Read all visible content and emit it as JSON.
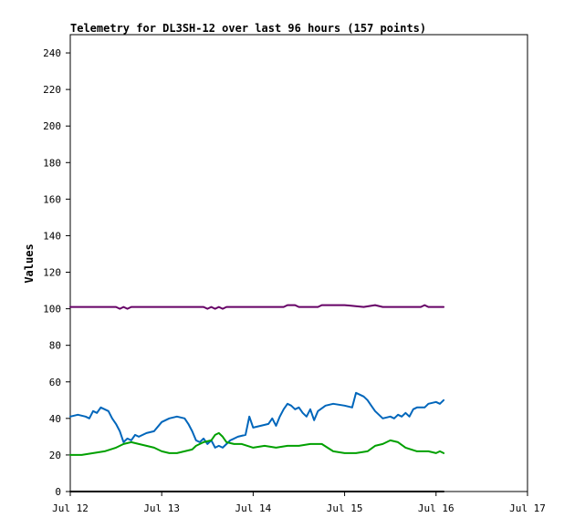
{
  "chart_data": {
    "type": "line",
    "title": "Telemetry for DL3SH-12 over last 96 hours (157 points)",
    "xlabel": "",
    "ylabel": "Values",
    "xlim": [
      "Jul 12",
      "Jul 17"
    ],
    "ylim": [
      0,
      250
    ],
    "x_ticks": [
      "Jul 12",
      "Jul 13",
      "Jul 14",
      "Jul 15",
      "Jul 16",
      "Jul 17"
    ],
    "y_ticks": [
      0,
      20,
      40,
      60,
      80,
      100,
      120,
      140,
      160,
      180,
      200,
      220,
      240
    ],
    "grid": false,
    "legend": "none",
    "series": [
      {
        "color": "#660066",
        "points": [
          [
            "Jul 12 00:00",
            101
          ],
          [
            "Jul 12 12:00",
            101
          ],
          [
            "Jul 12 13:00",
            100
          ],
          [
            "Jul 12 14:00",
            101
          ],
          [
            "Jul 12 15:00",
            100
          ],
          [
            "Jul 12 16:00",
            101
          ],
          [
            "Jul 13 00:00",
            101
          ],
          [
            "Jul 13 11:00",
            101
          ],
          [
            "Jul 13 12:00",
            100
          ],
          [
            "Jul 13 13:00",
            101
          ],
          [
            "Jul 13 14:00",
            100
          ],
          [
            "Jul 13 15:00",
            101
          ],
          [
            "Jul 13 16:00",
            100
          ],
          [
            "Jul 13 17:00",
            101
          ],
          [
            "Jul 14 00:00",
            101
          ],
          [
            "Jul 14 08:00",
            101
          ],
          [
            "Jul 14 09:00",
            102
          ],
          [
            "Jul 14 11:00",
            102
          ],
          [
            "Jul 14 12:00",
            101
          ],
          [
            "Jul 14 17:00",
            101
          ],
          [
            "Jul 14 18:00",
            102
          ],
          [
            "Jul 14 22:00",
            102
          ],
          [
            "Jul 15 00:00",
            102
          ],
          [
            "Jul 15 05:00",
            101
          ],
          [
            "Jul 15 08:00",
            102
          ],
          [
            "Jul 15 10:00",
            101
          ],
          [
            "Jul 15 20:00",
            101
          ],
          [
            "Jul 15 21:00",
            102
          ],
          [
            "Jul 15 22:00",
            101
          ],
          [
            "Jul 16 02:00",
            101
          ]
        ]
      },
      {
        "color": "#0066bb",
        "points": [
          [
            "Jul 12 00:00",
            41
          ],
          [
            "Jul 12 02:00",
            42
          ],
          [
            "Jul 12 04:00",
            41
          ],
          [
            "Jul 12 05:00",
            40
          ],
          [
            "Jul 12 06:00",
            44
          ],
          [
            "Jul 12 07:00",
            43
          ],
          [
            "Jul 12 08:00",
            46
          ],
          [
            "Jul 12 09:00",
            45
          ],
          [
            "Jul 12 10:00",
            44
          ],
          [
            "Jul 12 11:00",
            40
          ],
          [
            "Jul 12 12:00",
            37
          ],
          [
            "Jul 12 13:00",
            33
          ],
          [
            "Jul 12 14:00",
            27
          ],
          [
            "Jul 12 15:00",
            29
          ],
          [
            "Jul 12 16:00",
            28
          ],
          [
            "Jul 12 17:00",
            31
          ],
          [
            "Jul 12 18:00",
            30
          ],
          [
            "Jul 12 19:00",
            31
          ],
          [
            "Jul 12 20:00",
            32
          ],
          [
            "Jul 12 22:00",
            33
          ],
          [
            "Jul 13 00:00",
            38
          ],
          [
            "Jul 13 02:00",
            40
          ],
          [
            "Jul 13 04:00",
            41
          ],
          [
            "Jul 13 06:00",
            40
          ],
          [
            "Jul 13 07:00",
            37
          ],
          [
            "Jul 13 08:00",
            33
          ],
          [
            "Jul 13 09:00",
            28
          ],
          [
            "Jul 13 10:00",
            27
          ],
          [
            "Jul 13 11:00",
            29
          ],
          [
            "Jul 13 12:00",
            26
          ],
          [
            "Jul 13 13:00",
            28
          ],
          [
            "Jul 13 14:00",
            24
          ],
          [
            "Jul 13 15:00",
            25
          ],
          [
            "Jul 13 16:00",
            24
          ],
          [
            "Jul 13 17:00",
            26
          ],
          [
            "Jul 13 18:00",
            28
          ],
          [
            "Jul 13 20:00",
            30
          ],
          [
            "Jul 13 22:00",
            31
          ],
          [
            "Jul 13 23:00",
            41
          ],
          [
            "Jul 14 00:00",
            35
          ],
          [
            "Jul 14 02:00",
            36
          ],
          [
            "Jul 14 04:00",
            37
          ],
          [
            "Jul 14 05:00",
            40
          ],
          [
            "Jul 14 06:00",
            36
          ],
          [
            "Jul 14 07:00",
            41
          ],
          [
            "Jul 14 08:00",
            45
          ],
          [
            "Jul 14 09:00",
            48
          ],
          [
            "Jul 14 10:00",
            47
          ],
          [
            "Jul 14 11:00",
            45
          ],
          [
            "Jul 14 12:00",
            46
          ],
          [
            "Jul 14 13:00",
            43
          ],
          [
            "Jul 14 14:00",
            41
          ],
          [
            "Jul 14 15:00",
            45
          ],
          [
            "Jul 14 16:00",
            39
          ],
          [
            "Jul 14 17:00",
            44
          ],
          [
            "Jul 14 19:00",
            47
          ],
          [
            "Jul 14 21:00",
            48
          ],
          [
            "Jul 15 00:00",
            47
          ],
          [
            "Jul 15 02:00",
            46
          ],
          [
            "Jul 15 03:00",
            54
          ],
          [
            "Jul 15 04:00",
            53
          ],
          [
            "Jul 15 05:00",
            52
          ],
          [
            "Jul 15 06:00",
            50
          ],
          [
            "Jul 15 07:00",
            47
          ],
          [
            "Jul 15 08:00",
            44
          ],
          [
            "Jul 15 10:00",
            40
          ],
          [
            "Jul 15 12:00",
            41
          ],
          [
            "Jul 15 13:00",
            40
          ],
          [
            "Jul 15 14:00",
            42
          ],
          [
            "Jul 15 15:00",
            41
          ],
          [
            "Jul 15 16:00",
            43
          ],
          [
            "Jul 15 17:00",
            41
          ],
          [
            "Jul 15 18:00",
            45
          ],
          [
            "Jul 15 19:00",
            46
          ],
          [
            "Jul 15 21:00",
            46
          ],
          [
            "Jul 15 22:00",
            48
          ],
          [
            "Jul 16 00:00",
            49
          ],
          [
            "Jul 16 01:00",
            48
          ],
          [
            "Jul 16 02:00",
            50
          ]
        ]
      },
      {
        "color": "#00a000",
        "points": [
          [
            "Jul 12 00:00",
            20
          ],
          [
            "Jul 12 03:00",
            20
          ],
          [
            "Jul 12 06:00",
            21
          ],
          [
            "Jul 12 09:00",
            22
          ],
          [
            "Jul 12 12:00",
            24
          ],
          [
            "Jul 12 14:00",
            26
          ],
          [
            "Jul 12 16:00",
            27
          ],
          [
            "Jul 12 18:00",
            26
          ],
          [
            "Jul 12 20:00",
            25
          ],
          [
            "Jul 12 22:00",
            24
          ],
          [
            "Jul 13 00:00",
            22
          ],
          [
            "Jul 13 02:00",
            21
          ],
          [
            "Jul 13 04:00",
            21
          ],
          [
            "Jul 13 06:00",
            22
          ],
          [
            "Jul 13 08:00",
            23
          ],
          [
            "Jul 13 09:00",
            25
          ],
          [
            "Jul 13 11:00",
            27
          ],
          [
            "Jul 13 13:00",
            28
          ],
          [
            "Jul 13 14:00",
            31
          ],
          [
            "Jul 13 15:00",
            32
          ],
          [
            "Jul 13 16:00",
            30
          ],
          [
            "Jul 13 17:00",
            27
          ],
          [
            "Jul 13 19:00",
            26
          ],
          [
            "Jul 13 21:00",
            26
          ],
          [
            "Jul 14 00:00",
            24
          ],
          [
            "Jul 14 03:00",
            25
          ],
          [
            "Jul 14 06:00",
            24
          ],
          [
            "Jul 14 09:00",
            25
          ],
          [
            "Jul 14 12:00",
            25
          ],
          [
            "Jul 14 15:00",
            26
          ],
          [
            "Jul 14 18:00",
            26
          ],
          [
            "Jul 14 21:00",
            22
          ],
          [
            "Jul 15 00:00",
            21
          ],
          [
            "Jul 15 03:00",
            21
          ],
          [
            "Jul 15 06:00",
            22
          ],
          [
            "Jul 15 08:00",
            25
          ],
          [
            "Jul 15 10:00",
            26
          ],
          [
            "Jul 15 12:00",
            28
          ],
          [
            "Jul 15 14:00",
            27
          ],
          [
            "Jul 15 16:00",
            24
          ],
          [
            "Jul 15 19:00",
            22
          ],
          [
            "Jul 15 22:00",
            22
          ],
          [
            "Jul 16 00:00",
            21
          ],
          [
            "Jul 16 01:00",
            22
          ],
          [
            "Jul 16 02:00",
            21
          ]
        ]
      },
      {
        "color": "#000000",
        "points": [
          [
            "Jul 12 00:00",
            0
          ],
          [
            "Jul 16 02:00",
            0
          ]
        ]
      }
    ]
  }
}
